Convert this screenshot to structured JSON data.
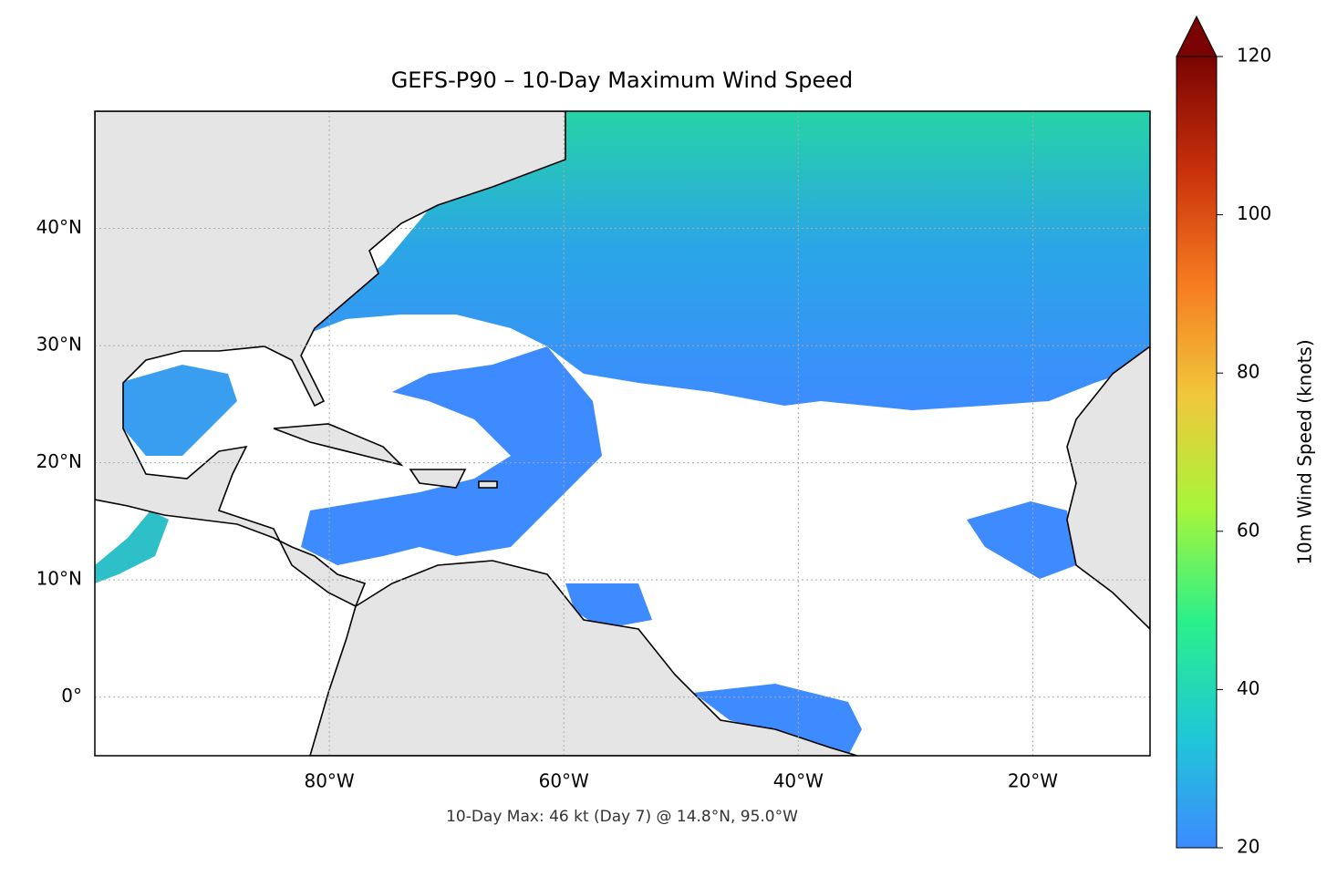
{
  "map": {
    "title": "GEFS-P90 – 10-Day Maximum Wind Speed",
    "note": "10-Day Max: 46 kt (Day 7) @ 14.8°N, 95.0°W",
    "lonlim": [
      -100,
      -10
    ],
    "latlim": [
      -5,
      50
    ],
    "lon_ticks": [
      {
        "value": -80,
        "label": "80°W"
      },
      {
        "value": -60,
        "label": "60°W"
      },
      {
        "value": -40,
        "label": "40°W"
      },
      {
        "value": -20,
        "label": "20°W"
      }
    ],
    "lat_ticks": [
      {
        "value": 0,
        "label": "0°"
      },
      {
        "value": 10,
        "label": "10°N"
      },
      {
        "value": 20,
        "label": "20°N"
      },
      {
        "value": 30,
        "label": "30°N"
      },
      {
        "value": 40,
        "label": "40°N"
      }
    ],
    "grid": true,
    "colorbar": {
      "label": "10m Wind Speed (knots)",
      "lim": [
        20,
        120
      ],
      "ticks": [
        20,
        40,
        60,
        80,
        100,
        120
      ],
      "colors": [
        "#3d8bff",
        "#1fc8d6",
        "#2af08a",
        "#a8f53a",
        "#f1c73a",
        "#f67b20",
        "#c8300a",
        "#7a0403"
      ]
    }
  }
}
